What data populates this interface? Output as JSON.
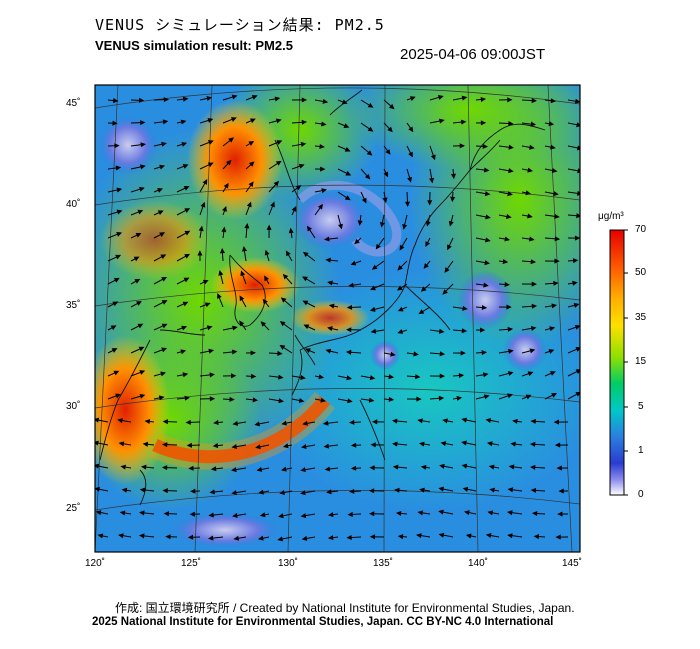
{
  "header": {
    "title_jp": "VENUS シミュレーション結果: PM2.5",
    "title_en": "VENUS simulation result: PM2.5",
    "timestamp": "2025-04-06 09:00JST"
  },
  "map": {
    "lon_ticks": [
      "120˚",
      "125˚",
      "130˚",
      "135˚",
      "140˚",
      "145˚"
    ],
    "lat_ticks": [
      "45˚",
      "40˚",
      "35˚",
      "30˚",
      "25˚"
    ]
  },
  "colorbar": {
    "unit": "μg/m³",
    "labels": [
      "70",
      "50",
      "35",
      "15",
      "5",
      "1",
      "0"
    ],
    "colors": [
      "#e60000",
      "#ff8000",
      "#ffd000",
      "#8ee000",
      "#00cc66",
      "#00c8c8",
      "#2a7fe0",
      "#2a3cd0",
      "#8888ee",
      "#ffffff"
    ]
  },
  "footer": {
    "credit": "作成: 国立環境研究所 / Created by National Institute for Environmental Studies, Japan.",
    "license": "2025 National Institute for Environmental Studies, Japan. CC BY-NC 4.0 International"
  }
}
